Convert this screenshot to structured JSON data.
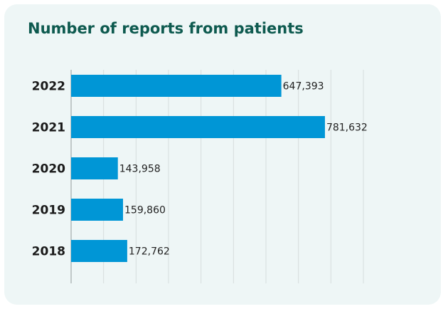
{
  "chart_data": {
    "type": "bar",
    "orientation": "horizontal",
    "title": "Number of reports from patients",
    "xlabel": "",
    "ylabel": "",
    "categories": [
      "2022",
      "2021",
      "2020",
      "2019",
      "2018"
    ],
    "values": [
      647393,
      781632,
      143958,
      159860,
      172762
    ],
    "value_labels": [
      "647,393",
      "781,632",
      "143,958",
      "159,860",
      "172,762"
    ],
    "xlim": [
      0,
      900000
    ],
    "grid": true,
    "legend": "none",
    "colors": {
      "bar": "#0096d6",
      "title": "#0e5a4f",
      "background": "#eef6f6",
      "grid": "#d6dddd"
    }
  }
}
